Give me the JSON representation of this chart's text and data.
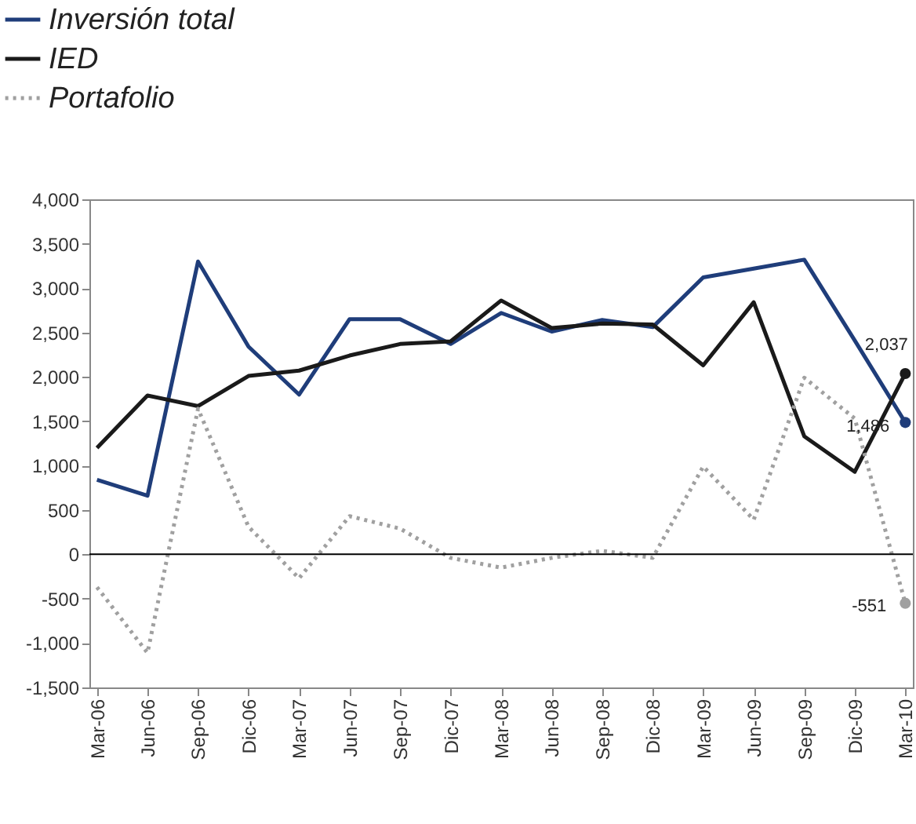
{
  "chart_data": {
    "type": "line",
    "categories": [
      "Mar-06",
      "Jun-06",
      "Sep-06",
      "Dic-06",
      "Mar-07",
      "Jun-07",
      "Sep-07",
      "Dic-07",
      "Mar-08",
      "Jun-08",
      "Sep-08",
      "Dic-08",
      "Mar-09",
      "Jun-09",
      "Sep-09",
      "Dic-09",
      "Mar-10"
    ],
    "series": [
      {
        "name": "Inversión total",
        "color": "#1f3d7a",
        "line_style": "solid",
        "values": [
          840,
          660,
          3300,
          2340,
          1800,
          2650,
          2650,
          2370,
          2720,
          2510,
          2640,
          2560,
          3120,
          3220,
          3320,
          2410,
          1486
        ],
        "value_labels": [
          null,
          null,
          null,
          null,
          null,
          null,
          null,
          null,
          null,
          null,
          null,
          null,
          null,
          null,
          null,
          null,
          "1,486"
        ]
      },
      {
        "name": "IED",
        "color": "#1a1a1a",
        "line_style": "solid",
        "values": [
          1200,
          1790,
          1670,
          2010,
          2070,
          2240,
          2370,
          2400,
          2860,
          2550,
          2600,
          2590,
          2130,
          2840,
          1330,
          930,
          2037
        ],
        "value_labels": [
          null,
          null,
          null,
          null,
          null,
          null,
          null,
          null,
          null,
          null,
          null,
          null,
          null,
          null,
          null,
          null,
          "2,037"
        ]
      },
      {
        "name": "Portafolio",
        "color": "#a0a0a0",
        "line_style": "dotted",
        "values": [
          -370,
          -1110,
          1640,
          310,
          -270,
          430,
          290,
          -40,
          -150,
          -40,
          40,
          -40,
          990,
          390,
          1990,
          1530,
          -551
        ],
        "value_labels": [
          null,
          null,
          null,
          null,
          null,
          null,
          null,
          null,
          null,
          null,
          null,
          null,
          null,
          null,
          null,
          null,
          "-551"
        ]
      }
    ],
    "ylim": [
      -1500,
      4000
    ],
    "yticks": [
      {
        "value": -1500,
        "label": "-1,500"
      },
      {
        "value": -1000,
        "label": "-1,000"
      },
      -500,
      0,
      500,
      {
        "value": 1000,
        "label": "1,000"
      },
      {
        "value": 1500,
        "label": "1,500"
      },
      {
        "value": 2000,
        "label": "2,000"
      },
      {
        "value": 2500,
        "label": "2,500"
      },
      {
        "value": 3000,
        "label": "3,000"
      },
      {
        "value": 3500,
        "label": "3,500"
      },
      {
        "value": 4000,
        "label": "4,000"
      }
    ],
    "grid": false,
    "legend": "top left",
    "ref_lines": [
      {
        "axis": "y",
        "value": 0,
        "color": "#000000",
        "line_style": "solid"
      }
    ]
  }
}
